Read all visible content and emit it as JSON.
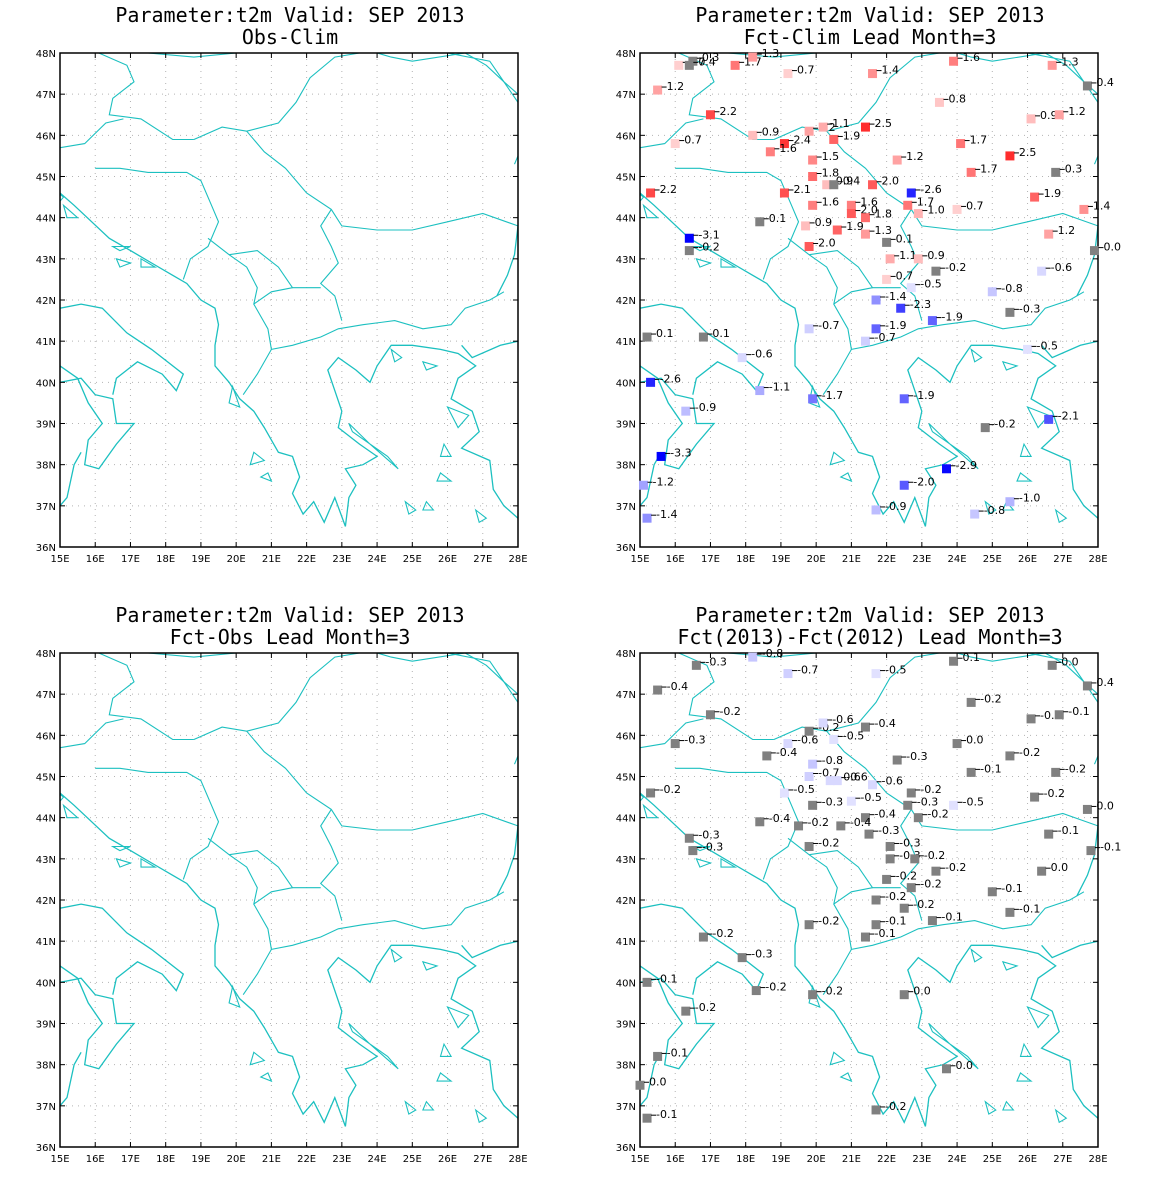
{
  "axes": {
    "lon_ticks": [
      "15E",
      "16E",
      "17E",
      "18E",
      "19E",
      "20E",
      "21E",
      "22E",
      "23E",
      "24E",
      "25E",
      "26E",
      "27E",
      "28E"
    ],
    "lat_ticks": [
      "36N",
      "37N",
      "38N",
      "39N",
      "40N",
      "41N",
      "42N",
      "43N",
      "44N",
      "45N",
      "46N",
      "47N",
      "48N"
    ],
    "lon_range": [
      15,
      28
    ],
    "lat_range": [
      36,
      48
    ]
  },
  "colors": {
    "coast": "#1cc0c0",
    "grid": "#b4b4b4",
    "neutral": "#808080",
    "pos_strong": "#ff0000",
    "neg_strong": "#0000ff"
  },
  "panels": [
    {
      "title1": "Parameter:t2m Valid: SEP 2013",
      "title2": "Obs-Clim",
      "points": []
    },
    {
      "title1": "Parameter:t2m Valid: SEP 2013",
      "title2": "Fct-Clim Lead Month=3",
      "points": [
        {
          "lon": 15.5,
          "lat": 47.1,
          "v": 1.2,
          "t": "1.2"
        },
        {
          "lon": 16.1,
          "lat": 47.7,
          "v": 0.7,
          "t": "0.7"
        },
        {
          "lon": 16.5,
          "lat": 47.8,
          "v": 0.3,
          "t": "0.3"
        },
        {
          "lon": 16.4,
          "lat": 47.7,
          "v": 0.4,
          "t": "0.4"
        },
        {
          "lon": 17.7,
          "lat": 47.7,
          "v": 1.7,
          "t": "1.7"
        },
        {
          "lon": 18.2,
          "lat": 47.9,
          "v": 1.3,
          "t": "1.3"
        },
        {
          "lon": 19.2,
          "lat": 47.5,
          "v": 0.7,
          "t": "0.7"
        },
        {
          "lon": 21.6,
          "lat": 47.5,
          "v": 1.4,
          "t": "1.4"
        },
        {
          "lon": 23.9,
          "lat": 47.8,
          "v": 1.6,
          "t": "1.6"
        },
        {
          "lon": 26.7,
          "lat": 47.7,
          "v": 1.3,
          "t": "1.3"
        },
        {
          "lon": 27.7,
          "lat": 47.2,
          "v": 0.4,
          "t": "0.4"
        },
        {
          "lon": 17.0,
          "lat": 46.5,
          "v": 2.2,
          "t": "2.2"
        },
        {
          "lon": 16.0,
          "lat": 45.8,
          "v": 0.7,
          "t": "0.7"
        },
        {
          "lon": 18.2,
          "lat": 46.0,
          "v": 0.9,
          "t": "0.9"
        },
        {
          "lon": 19.1,
          "lat": 45.8,
          "v": 2.4,
          "t": "2.4"
        },
        {
          "lon": 18.7,
          "lat": 45.6,
          "v": 1.6,
          "t": "1.6"
        },
        {
          "lon": 19.8,
          "lat": 46.1,
          "v": 1.2,
          "t": "1.2"
        },
        {
          "lon": 20.2,
          "lat": 46.2,
          "v": 1.1,
          "t": "1.1"
        },
        {
          "lon": 20.5,
          "lat": 45.9,
          "v": 1.9,
          "t": "1.9"
        },
        {
          "lon": 21.4,
          "lat": 46.2,
          "v": 2.5,
          "t": "2.5"
        },
        {
          "lon": 23.5,
          "lat": 46.8,
          "v": 0.8,
          "t": "0.8"
        },
        {
          "lon": 26.1,
          "lat": 46.4,
          "v": 0.9,
          "t": "0.9"
        },
        {
          "lon": 26.9,
          "lat": 46.5,
          "v": 1.2,
          "t": "1.2"
        },
        {
          "lon": 19.9,
          "lat": 45.4,
          "v": 1.5,
          "t": "1.5"
        },
        {
          "lon": 19.9,
          "lat": 45.0,
          "v": 1.8,
          "t": "1.8"
        },
        {
          "lon": 20.3,
          "lat": 44.8,
          "v": 0.9,
          "t": "0.9"
        },
        {
          "lon": 20.5,
          "lat": 44.8,
          "v": 0.4,
          "t": "0.4"
        },
        {
          "lon": 21.6,
          "lat": 44.8,
          "v": 2.0,
          "t": "2.0"
        },
        {
          "lon": 22.3,
          "lat": 45.4,
          "v": 1.2,
          "t": "1.2"
        },
        {
          "lon": 24.1,
          "lat": 45.8,
          "v": 1.7,
          "t": "1.7"
        },
        {
          "lon": 24.4,
          "lat": 45.1,
          "v": 1.7,
          "t": "1.7"
        },
        {
          "lon": 25.5,
          "lat": 45.5,
          "v": 2.5,
          "t": "2.5"
        },
        {
          "lon": 26.8,
          "lat": 45.1,
          "v": 0.3,
          "t": "0.3"
        },
        {
          "lon": 15.3,
          "lat": 44.6,
          "v": 2.2,
          "t": "2.2"
        },
        {
          "lon": 19.1,
          "lat": 44.6,
          "v": 2.1,
          "t": "2.1"
        },
        {
          "lon": 19.9,
          "lat": 44.3,
          "v": 1.6,
          "t": "1.6"
        },
        {
          "lon": 21.0,
          "lat": 44.3,
          "v": 1.6,
          "t": "1.6"
        },
        {
          "lon": 22.7,
          "lat": 44.6,
          "v": -2.6,
          "t": "-2.6"
        },
        {
          "lon": 22.6,
          "lat": 44.3,
          "v": 1.7,
          "t": "1.7"
        },
        {
          "lon": 22.9,
          "lat": 44.1,
          "v": 1.0,
          "t": "1.0"
        },
        {
          "lon": 24.0,
          "lat": 44.2,
          "v": 0.7,
          "t": "0.7"
        },
        {
          "lon": 26.2,
          "lat": 44.5,
          "v": 1.9,
          "t": "1.9"
        },
        {
          "lon": 27.6,
          "lat": 44.2,
          "v": 1.4,
          "t": "1.4"
        },
        {
          "lon": 18.4,
          "lat": 43.9,
          "v": 0.1,
          "t": "0.1"
        },
        {
          "lon": 19.7,
          "lat": 43.8,
          "v": 0.9,
          "t": "0.9"
        },
        {
          "lon": 20.6,
          "lat": 43.7,
          "v": 1.9,
          "t": "1.9"
        },
        {
          "lon": 21.0,
          "lat": 44.1,
          "v": 2.0,
          "t": "2.0"
        },
        {
          "lon": 21.4,
          "lat": 44.0,
          "v": 1.8,
          "t": "1.8"
        },
        {
          "lon": 21.4,
          "lat": 43.6,
          "v": 1.3,
          "t": "1.3"
        },
        {
          "lon": 16.4,
          "lat": 43.5,
          "v": -3.1,
          "t": "-3.1"
        },
        {
          "lon": 16.4,
          "lat": 43.2,
          "v": -0.2,
          "t": "-0.2"
        },
        {
          "lon": 19.8,
          "lat": 43.3,
          "v": 2.0,
          "t": "2.0"
        },
        {
          "lon": 22.0,
          "lat": 43.4,
          "v": 0.1,
          "t": "0.1"
        },
        {
          "lon": 22.1,
          "lat": 43.0,
          "v": 1.1,
          "t": "1.1"
        },
        {
          "lon": 22.9,
          "lat": 43.0,
          "v": 0.9,
          "t": "0.9"
        },
        {
          "lon": 23.4,
          "lat": 42.7,
          "v": -0.2,
          "t": "-0.2"
        },
        {
          "lon": 26.4,
          "lat": 42.7,
          "v": -0.6,
          "t": "-0.6"
        },
        {
          "lon": 27.9,
          "lat": 43.2,
          "v": 0.0,
          "t": "0.0"
        },
        {
          "lon": 26.6,
          "lat": 43.6,
          "v": 1.2,
          "t": "1.2"
        },
        {
          "lon": 22.0,
          "lat": 42.5,
          "v": 0.7,
          "t": "0.7"
        },
        {
          "lon": 22.7,
          "lat": 42.3,
          "v": -0.5,
          "t": "-0.5"
        },
        {
          "lon": 25.0,
          "lat": 42.2,
          "v": -0.8,
          "t": "-0.8"
        },
        {
          "lon": 21.7,
          "lat": 42.0,
          "v": -1.4,
          "t": "-1.4"
        },
        {
          "lon": 22.4,
          "lat": 41.8,
          "v": -2.3,
          "t": "-2.3"
        },
        {
          "lon": 25.5,
          "lat": 41.7,
          "v": -0.3,
          "t": "-0.3"
        },
        {
          "lon": 21.7,
          "lat": 41.3,
          "v": -1.9,
          "t": "-1.9"
        },
        {
          "lon": 23.3,
          "lat": 41.5,
          "v": -1.9,
          "t": "-1.9"
        },
        {
          "lon": 21.4,
          "lat": 41.0,
          "v": -0.7,
          "t": "-0.7"
        },
        {
          "lon": 19.8,
          "lat": 41.3,
          "v": -0.7,
          "t": "-0.7"
        },
        {
          "lon": 15.2,
          "lat": 41.1,
          "v": 0.1,
          "t": "0.1"
        },
        {
          "lon": 16.8,
          "lat": 41.1,
          "v": 0.1,
          "t": "0.1"
        },
        {
          "lon": 26.0,
          "lat": 40.8,
          "v": -0.5,
          "t": "-0.5"
        },
        {
          "lon": 17.9,
          "lat": 40.6,
          "v": -0.6,
          "t": "-0.6"
        },
        {
          "lon": 15.3,
          "lat": 40.0,
          "v": -2.6,
          "t": "-2.6"
        },
        {
          "lon": 18.4,
          "lat": 39.8,
          "v": -1.1,
          "t": "-1.1"
        },
        {
          "lon": 19.9,
          "lat": 39.6,
          "v": -1.7,
          "t": "-1.7"
        },
        {
          "lon": 22.5,
          "lat": 39.6,
          "v": -1.9,
          "t": "-1.9"
        },
        {
          "lon": 16.3,
          "lat": 39.3,
          "v": -0.9,
          "t": "-0.9"
        },
        {
          "lon": 24.8,
          "lat": 38.9,
          "v": -0.2,
          "t": "-0.2"
        },
        {
          "lon": 26.6,
          "lat": 39.1,
          "v": -2.1,
          "t": "-2.1"
        },
        {
          "lon": 15.6,
          "lat": 38.2,
          "v": -3.3,
          "t": "-3.3"
        },
        {
          "lon": 23.7,
          "lat": 37.9,
          "v": -2.9,
          "t": "-2.9"
        },
        {
          "lon": 22.5,
          "lat": 37.5,
          "v": -2.0,
          "t": "-2.0"
        },
        {
          "lon": 15.1,
          "lat": 37.5,
          "v": -1.2,
          "t": "-1.2"
        },
        {
          "lon": 25.5,
          "lat": 37.1,
          "v": -1.0,
          "t": "-1.0"
        },
        {
          "lon": 15.2,
          "lat": 36.7,
          "v": -1.4,
          "t": "-1.4"
        },
        {
          "lon": 21.7,
          "lat": 36.9,
          "v": -0.9,
          "t": "-0.9"
        },
        {
          "lon": 24.5,
          "lat": 36.8,
          "v": -0.8,
          "t": "-0.8"
        }
      ]
    },
    {
      "title1": "Parameter:t2m Valid: SEP 2013",
      "title2": "Fct-Obs Lead Month=3",
      "points": []
    },
    {
      "title1": "Parameter:t2m Valid: SEP 2013",
      "title2": "Fct(2013)-Fct(2012) Lead Month=3",
      "points": [
        {
          "lon": 15.5,
          "lat": 47.1,
          "v": -0.4,
          "t": "-0.4"
        },
        {
          "lon": 16.6,
          "lat": 47.7,
          "v": -0.3,
          "t": "-0.3"
        },
        {
          "lon": 18.2,
          "lat": 47.9,
          "v": -0.8,
          "t": "-0.8"
        },
        {
          "lon": 19.2,
          "lat": 47.5,
          "v": -0.7,
          "t": "-0.7"
        },
        {
          "lon": 21.7,
          "lat": 47.5,
          "v": -0.5,
          "t": "-0.5"
        },
        {
          "lon": 23.9,
          "lat": 47.8,
          "v": 0.1,
          "t": "0.1"
        },
        {
          "lon": 26.7,
          "lat": 47.7,
          "v": 0.0,
          "t": "0.0"
        },
        {
          "lon": 27.7,
          "lat": 47.2,
          "v": 0.4,
          "t": "0.4"
        },
        {
          "lon": 17.0,
          "lat": 46.5,
          "v": -0.2,
          "t": "-0.2"
        },
        {
          "lon": 24.4,
          "lat": 46.8,
          "v": -0.2,
          "t": "-0.2"
        },
        {
          "lon": 26.1,
          "lat": 46.4,
          "v": -0.3,
          "t": "-0.3"
        },
        {
          "lon": 26.9,
          "lat": 46.5,
          "v": -0.1,
          "t": "-0.1"
        },
        {
          "lon": 16.0,
          "lat": 45.8,
          "v": -0.3,
          "t": "-0.3"
        },
        {
          "lon": 19.8,
          "lat": 46.1,
          "v": -0.2,
          "t": "-0.2"
        },
        {
          "lon": 20.2,
          "lat": 46.3,
          "v": -0.6,
          "t": "-0.6"
        },
        {
          "lon": 21.4,
          "lat": 46.2,
          "v": -0.4,
          "t": "-0.4"
        },
        {
          "lon": 19.2,
          "lat": 45.8,
          "v": -0.6,
          "t": "-0.6"
        },
        {
          "lon": 20.5,
          "lat": 45.9,
          "v": -0.5,
          "t": "-0.5"
        },
        {
          "lon": 24.0,
          "lat": 45.8,
          "v": 0.0,
          "t": "0.0"
        },
        {
          "lon": 18.6,
          "lat": 45.5,
          "v": -0.4,
          "t": "-0.4"
        },
        {
          "lon": 22.3,
          "lat": 45.4,
          "v": -0.3,
          "t": "-0.3"
        },
        {
          "lon": 25.5,
          "lat": 45.5,
          "v": -0.2,
          "t": "-0.2"
        },
        {
          "lon": 19.9,
          "lat": 45.3,
          "v": -0.8,
          "t": "-0.8"
        },
        {
          "lon": 24.4,
          "lat": 45.1,
          "v": -0.1,
          "t": "-0.1"
        },
        {
          "lon": 26.8,
          "lat": 45.1,
          "v": -0.2,
          "t": "-0.2"
        },
        {
          "lon": 19.8,
          "lat": 45.0,
          "v": -0.7,
          "t": "-0.7"
        },
        {
          "lon": 20.4,
          "lat": 44.9,
          "v": -0.6,
          "t": "-0.6"
        },
        {
          "lon": 20.6,
          "lat": 44.9,
          "v": -0.6,
          "t": "-0.6"
        },
        {
          "lon": 21.6,
          "lat": 44.8,
          "v": -0.6,
          "t": "-0.6"
        },
        {
          "lon": 19.1,
          "lat": 44.6,
          "v": -0.5,
          "t": "-0.5"
        },
        {
          "lon": 22.7,
          "lat": 44.6,
          "v": -0.2,
          "t": "-0.2"
        },
        {
          "lon": 26.2,
          "lat": 44.5,
          "v": -0.2,
          "t": "-0.2"
        },
        {
          "lon": 15.3,
          "lat": 44.6,
          "v": -0.2,
          "t": "-0.2"
        },
        {
          "lon": 21.0,
          "lat": 44.4,
          "v": -0.5,
          "t": "-0.5"
        },
        {
          "lon": 22.6,
          "lat": 44.3,
          "v": -0.3,
          "t": "-0.3"
        },
        {
          "lon": 19.9,
          "lat": 44.3,
          "v": -0.3,
          "t": "-0.3"
        },
        {
          "lon": 23.9,
          "lat": 44.3,
          "v": -0.5,
          "t": "-0.5"
        },
        {
          "lon": 27.7,
          "lat": 44.2,
          "v": 0.0,
          "t": "0.0"
        },
        {
          "lon": 21.4,
          "lat": 44.0,
          "v": -0.4,
          "t": "-0.4"
        },
        {
          "lon": 22.9,
          "lat": 44.0,
          "v": -0.2,
          "t": "-0.2"
        },
        {
          "lon": 18.4,
          "lat": 43.9,
          "v": -0.4,
          "t": "-0.4"
        },
        {
          "lon": 19.5,
          "lat": 43.8,
          "v": -0.2,
          "t": "-0.2"
        },
        {
          "lon": 20.7,
          "lat": 43.8,
          "v": -0.4,
          "t": "-0.4"
        },
        {
          "lon": 21.5,
          "lat": 43.6,
          "v": -0.3,
          "t": "-0.3"
        },
        {
          "lon": 16.4,
          "lat": 43.5,
          "v": -0.3,
          "t": "-0.3"
        },
        {
          "lon": 26.6,
          "lat": 43.6,
          "v": -0.1,
          "t": "-0.1"
        },
        {
          "lon": 16.5,
          "lat": 43.2,
          "v": -0.3,
          "t": "-0.3"
        },
        {
          "lon": 19.8,
          "lat": 43.3,
          "v": -0.2,
          "t": "-0.2"
        },
        {
          "lon": 22.1,
          "lat": 43.3,
          "v": -0.3,
          "t": "-0.3"
        },
        {
          "lon": 22.1,
          "lat": 43.0,
          "v": -0.3,
          "t": "-0.3"
        },
        {
          "lon": 22.8,
          "lat": 43.0,
          "v": -0.2,
          "t": "-0.2"
        },
        {
          "lon": 27.8,
          "lat": 43.2,
          "v": -0.1,
          "t": "-0.1"
        },
        {
          "lon": 23.4,
          "lat": 42.7,
          "v": -0.2,
          "t": "-0.2"
        },
        {
          "lon": 26.4,
          "lat": 42.7,
          "v": 0.0,
          "t": "0.0"
        },
        {
          "lon": 22.0,
          "lat": 42.5,
          "v": -0.2,
          "t": "-0.2"
        },
        {
          "lon": 22.7,
          "lat": 42.3,
          "v": -0.2,
          "t": "-0.2"
        },
        {
          "lon": 25.0,
          "lat": 42.2,
          "v": -0.1,
          "t": "-0.1"
        },
        {
          "lon": 21.7,
          "lat": 42.0,
          "v": -0.2,
          "t": "-0.2"
        },
        {
          "lon": 22.5,
          "lat": 41.8,
          "v": -0.2,
          "t": "-0.2"
        },
        {
          "lon": 25.5,
          "lat": 41.7,
          "v": -0.1,
          "t": "-0.1"
        },
        {
          "lon": 23.3,
          "lat": 41.5,
          "v": -0.1,
          "t": "-0.1"
        },
        {
          "lon": 21.7,
          "lat": 41.4,
          "v": -0.1,
          "t": "-0.1"
        },
        {
          "lon": 19.8,
          "lat": 41.4,
          "v": -0.2,
          "t": "-0.2"
        },
        {
          "lon": 21.4,
          "lat": 41.1,
          "v": -0.1,
          "t": "-0.1"
        },
        {
          "lon": 16.8,
          "lat": 41.1,
          "v": -0.2,
          "t": "-0.2"
        },
        {
          "lon": 17.9,
          "lat": 40.6,
          "v": -0.3,
          "t": "-0.3"
        },
        {
          "lon": 15.2,
          "lat": 40.0,
          "v": -0.1,
          "t": "-0.1"
        },
        {
          "lon": 18.3,
          "lat": 39.8,
          "v": -0.2,
          "t": "-0.2"
        },
        {
          "lon": 19.9,
          "lat": 39.7,
          "v": -0.2,
          "t": "-0.2"
        },
        {
          "lon": 22.5,
          "lat": 39.7,
          "v": 0.0,
          "t": "0.0"
        },
        {
          "lon": 16.3,
          "lat": 39.3,
          "v": -0.2,
          "t": "-0.2"
        },
        {
          "lon": 15.5,
          "lat": 38.2,
          "v": -0.1,
          "t": "-0.1"
        },
        {
          "lon": 23.7,
          "lat": 37.9,
          "v": 0.0,
          "t": "0.0"
        },
        {
          "lon": 15.0,
          "lat": 37.5,
          "v": 0.0,
          "t": "0.0"
        },
        {
          "lon": 15.2,
          "lat": 36.7,
          "v": -0.1,
          "t": "-0.1"
        },
        {
          "lon": 21.7,
          "lat": 36.9,
          "v": -0.2,
          "t": "-0.2"
        }
      ]
    }
  ]
}
